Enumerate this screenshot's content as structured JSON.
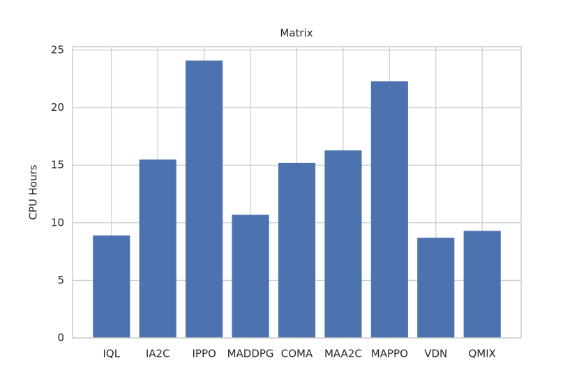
{
  "chart_data": {
    "type": "bar",
    "title": "Matrix",
    "y_label": "CPU Hours",
    "categories": [
      "IQL",
      "IA2C",
      "IPPO",
      "MADDPG",
      "COMA",
      "MAA2C",
      "MAPPO",
      "VDN",
      "QMIX"
    ],
    "values": [
      8.9,
      15.5,
      24.1,
      10.7,
      15.2,
      16.3,
      22.3,
      8.7,
      9.3
    ],
    "color": "#4c72b0",
    "ylim": [
      0,
      25.3
    ],
    "yticks": [
      0,
      5,
      10,
      15,
      20,
      25
    ],
    "grid": true
  }
}
